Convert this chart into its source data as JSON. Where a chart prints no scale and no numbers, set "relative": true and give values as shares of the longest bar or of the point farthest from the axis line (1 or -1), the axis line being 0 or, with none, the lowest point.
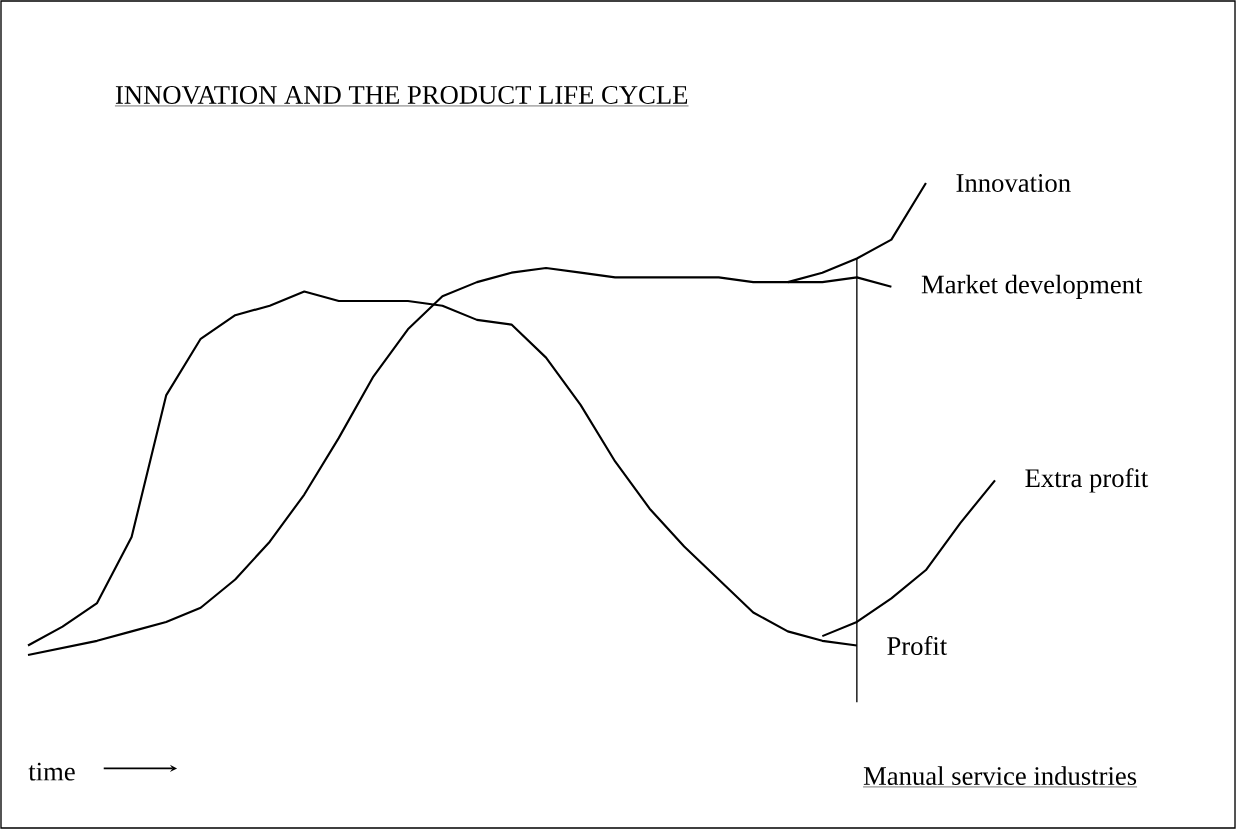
{
  "chart_data": {
    "type": "line",
    "title": "INNOVATION AND THE PRODUCT LIFE CYCLE",
    "xlabel": "time",
    "annotations": [
      "Manual service industries"
    ],
    "relative": true,
    "legend": false,
    "marker": "none",
    "line_style": "solid",
    "categories": [
      null,
      null,
      null,
      null,
      null,
      null,
      null,
      null,
      null,
      null,
      null,
      null,
      null,
      null,
      null,
      null,
      null,
      null,
      null,
      null,
      null,
      null,
      null,
      null,
      null,
      null,
      null,
      null,
      null
    ],
    "series": [
      {
        "name": "Innovation",
        "color": "#000000",
        "values": [
          null,
          null,
          null,
          null,
          null,
          null,
          null,
          null,
          null,
          null,
          null,
          null,
          null,
          null,
          null,
          null,
          null,
          null,
          null,
          null,
          null,
          null,
          0.79,
          0.81,
          0.84,
          0.88,
          1.0,
          null,
          null
        ]
      },
      {
        "name": "Market development",
        "color": "#000000",
        "values": [
          0,
          0.015,
          0.03,
          0.05,
          0.07,
          0.1,
          0.16,
          0.24,
          0.34,
          0.46,
          0.59,
          0.69,
          0.76,
          0.79,
          0.81,
          0.82,
          0.81,
          0.8,
          0.8,
          0.8,
          0.8,
          0.79,
          0.79,
          0.79,
          0.8,
          0.78,
          null,
          null,
          null
        ]
      },
      {
        "name": "Extra profit",
        "color": "#000000",
        "values": [
          null,
          null,
          null,
          null,
          null,
          null,
          null,
          null,
          null,
          null,
          null,
          null,
          null,
          null,
          null,
          null,
          null,
          null,
          null,
          null,
          null,
          null,
          null,
          0.04,
          0.07,
          0.12,
          0.18,
          0.28,
          0.37
        ]
      },
      {
        "name": "Profit",
        "color": "#000000",
        "values": [
          0.02,
          0.06,
          0.11,
          0.25,
          0.55,
          0.67,
          0.72,
          0.74,
          0.77,
          0.75,
          0.75,
          0.75,
          0.74,
          0.71,
          0.7,
          0.63,
          0.53,
          0.41,
          0.31,
          0.23,
          0.16,
          0.09,
          0.05,
          0.03,
          0.02,
          null,
          null,
          null,
          null
        ]
      }
    ]
  }
}
